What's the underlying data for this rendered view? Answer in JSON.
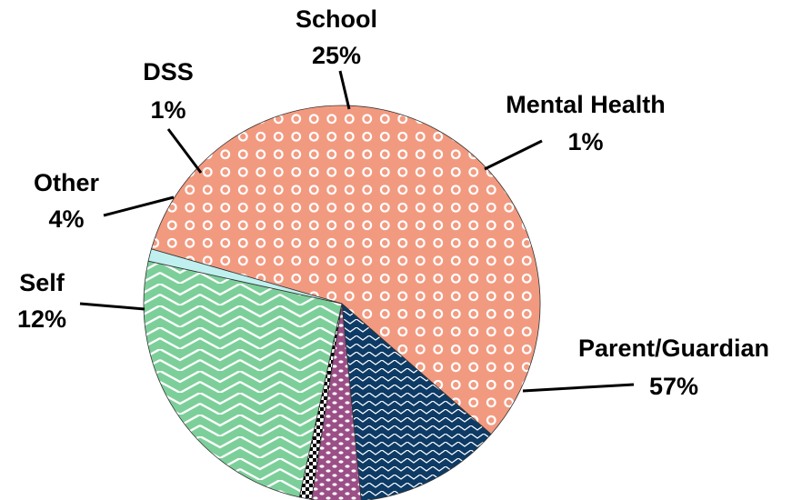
{
  "chart_data": {
    "type": "pie",
    "title": "",
    "slices": [
      {
        "label": "Parent/Guardian",
        "percent_label": "57%",
        "value": 57,
        "color": "#f29a80",
        "pattern": "circles"
      },
      {
        "label": "Self",
        "percent_label": "12%",
        "value": 12,
        "color": "#0d3b66",
        "pattern": "chevron"
      },
      {
        "label": "Other",
        "percent_label": "4%",
        "value": 4,
        "color": "#9b4f87",
        "pattern": "dots"
      },
      {
        "label": "DSS",
        "percent_label": "1%",
        "value": 1,
        "color": "#000000",
        "pattern": "checker"
      },
      {
        "label": "School",
        "percent_label": "25%",
        "value": 25,
        "color": "#7dcf9a",
        "pattern": "zigzag"
      },
      {
        "label": "Mental Health",
        "percent_label": "1%",
        "value": 1,
        "color": "#bff0ef",
        "pattern": "solid"
      }
    ]
  }
}
